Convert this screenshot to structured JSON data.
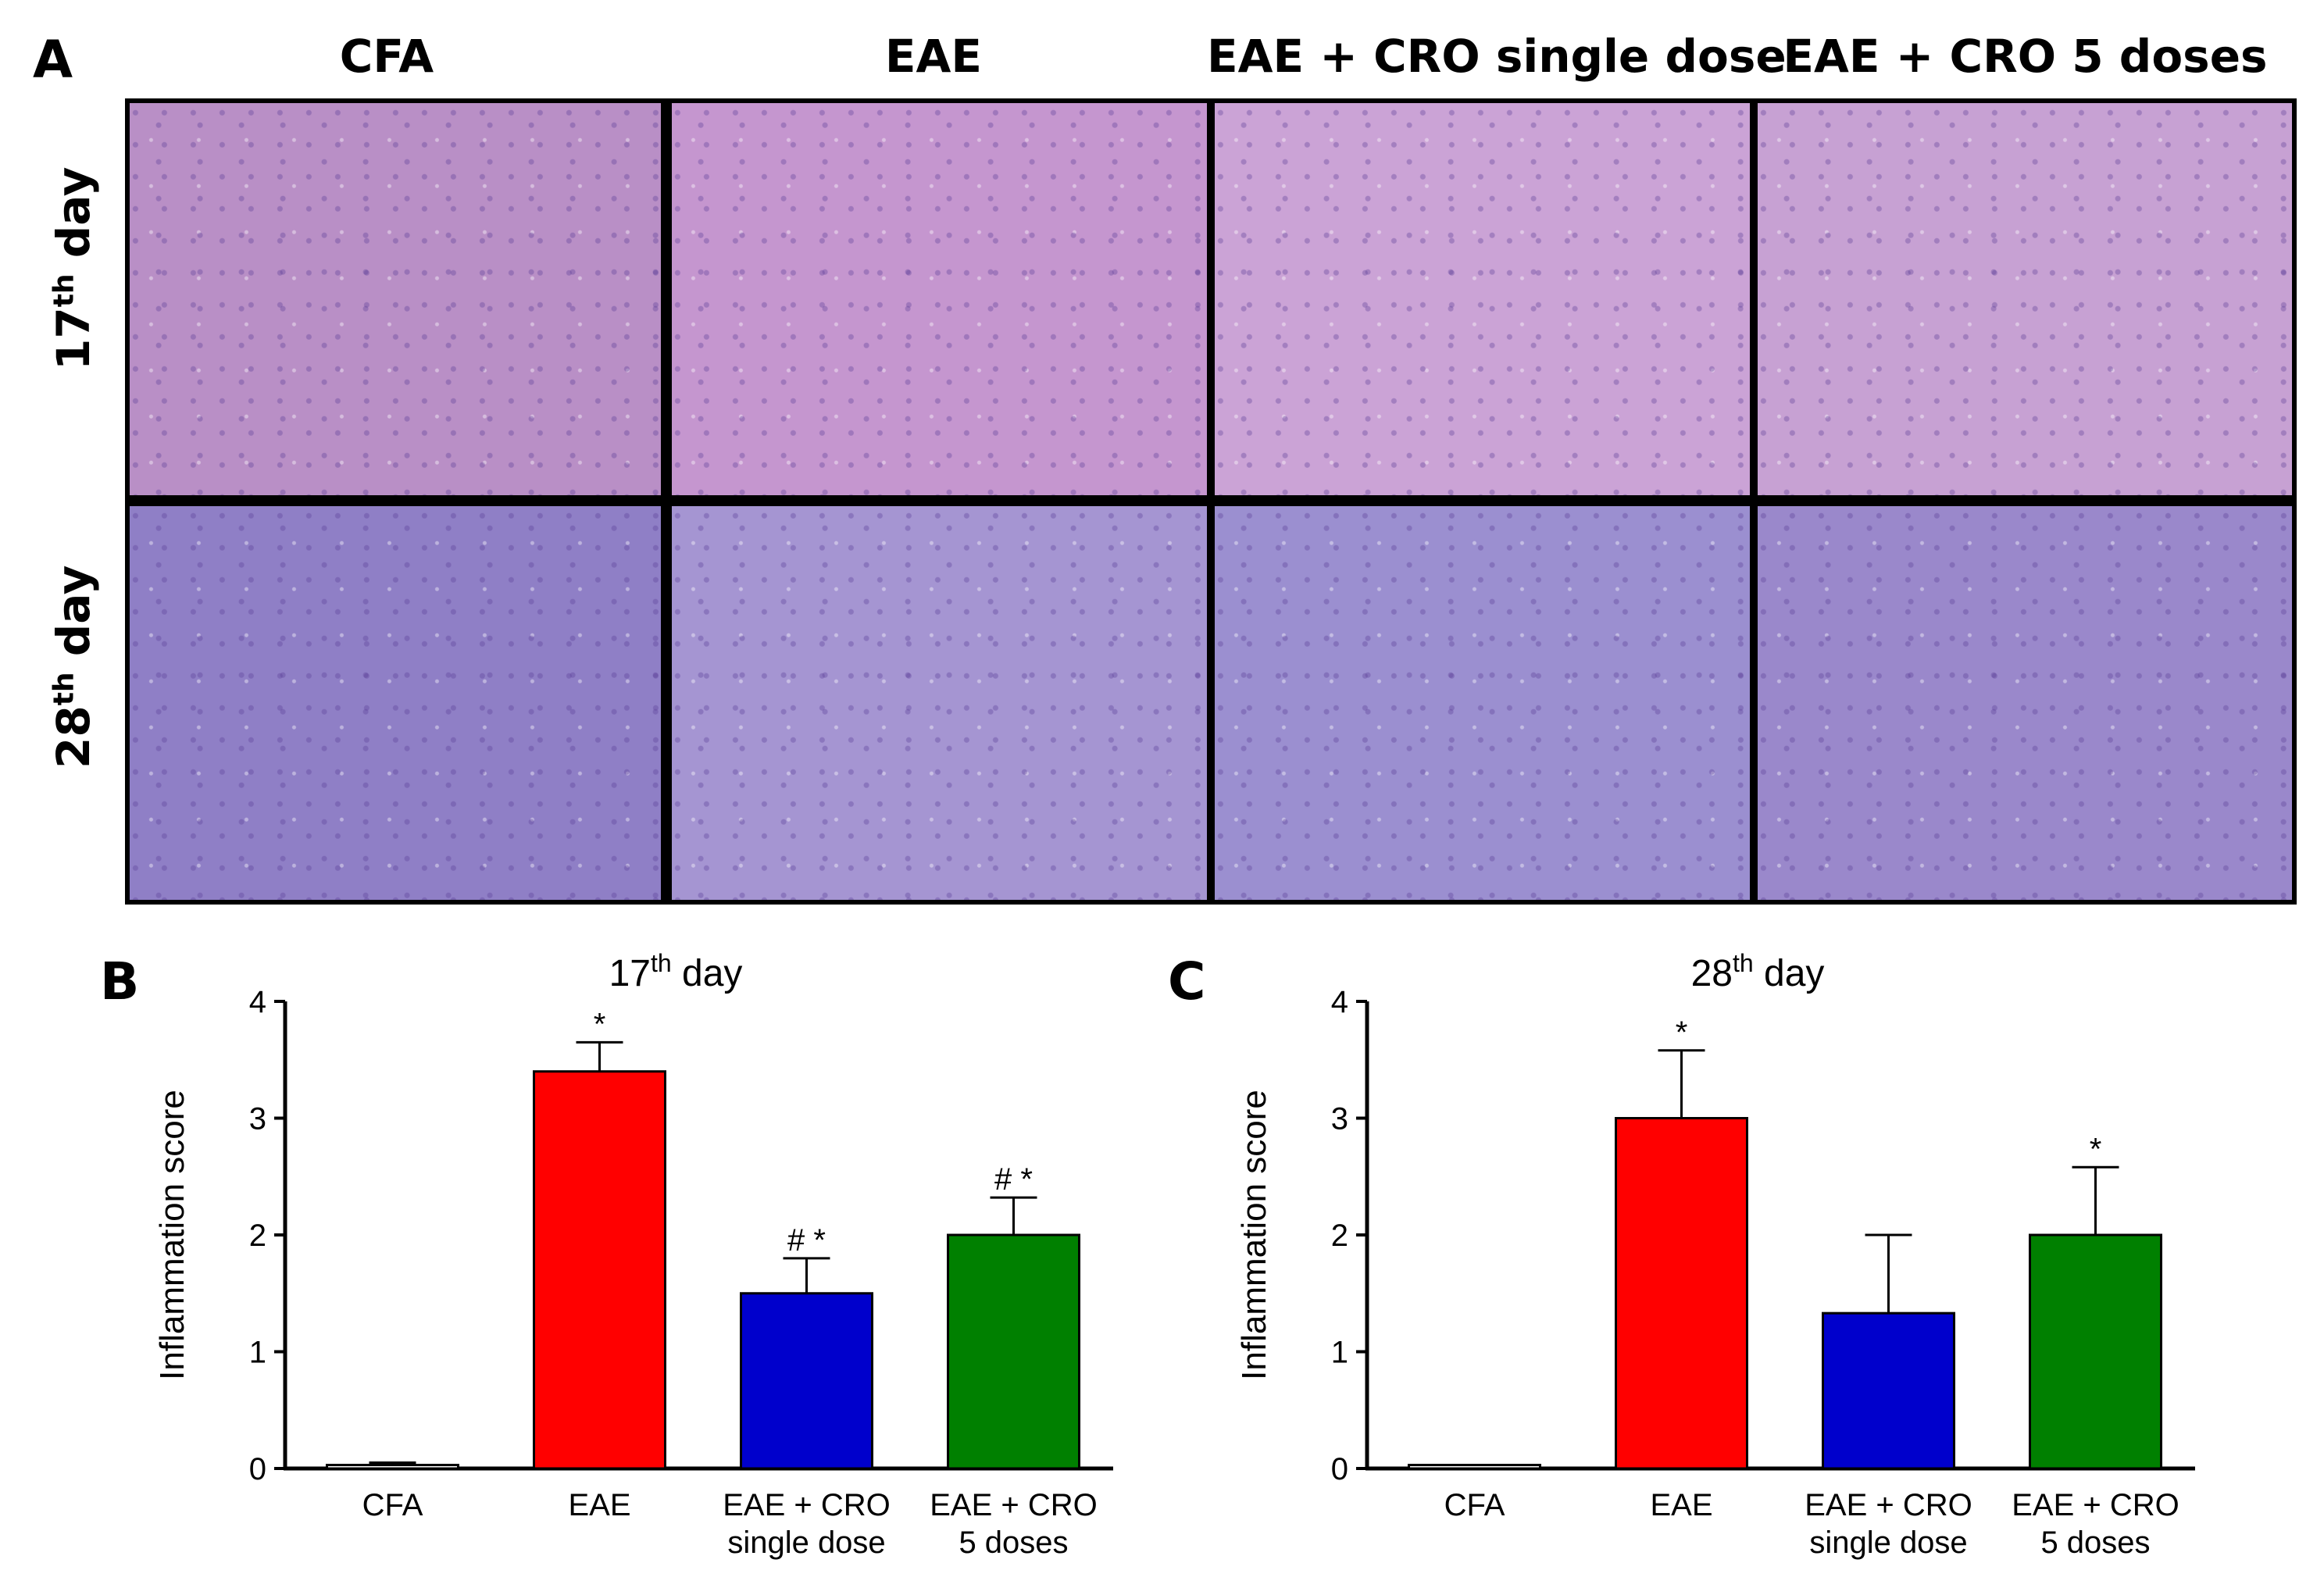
{
  "panel_a": {
    "letter": "A",
    "columns": [
      "CFA",
      "EAE",
      "EAE + CRO single dose",
      "EAE + CRO 5 doses"
    ],
    "rows": [
      {
        "prefix": "17",
        "sup": "th",
        "suffix": " day"
      },
      {
        "prefix": "28",
        "sup": "th",
        "suffix": " day"
      }
    ],
    "tile_colors": [
      [
        "#b98fc6",
        "#c596cf",
        "#cba3d6",
        "#c7a1d3"
      ],
      [
        "#8f7fc6",
        "#a595d2",
        "#9b8fd0",
        "#9a88cb"
      ]
    ]
  },
  "chart_data": [
    {
      "panel": "B",
      "type": "bar",
      "title_main": "17",
      "title_sup": "th",
      "title_rest": " day",
      "ylabel": "Inflammation score",
      "ylim": [
        0,
        4
      ],
      "yticks": [
        "0",
        "1",
        "2",
        "3",
        "4"
      ],
      "categories": [
        [
          "CFA"
        ],
        [
          "EAE"
        ],
        [
          "EAE + CRO",
          "single dose"
        ],
        [
          "EAE + CRO",
          "5 doses"
        ]
      ],
      "values": [
        0.03,
        3.4,
        1.5,
        2.0
      ],
      "errors": [
        0.02,
        0.25,
        0.3,
        0.32
      ],
      "colors": [
        "#ffffff",
        "#ff0000",
        "#0000cc",
        "#008000"
      ],
      "annotations": [
        "",
        "*",
        "# *",
        "# *"
      ]
    },
    {
      "panel": "C",
      "type": "bar",
      "title_main": "28",
      "title_sup": "th",
      "title_rest": " day",
      "ylabel": "Inflammation score",
      "ylim": [
        0,
        4
      ],
      "yticks": [
        "0",
        "1",
        "2",
        "3",
        "4"
      ],
      "categories": [
        [
          "CFA"
        ],
        [
          "EAE"
        ],
        [
          "EAE + CRO",
          "single dose"
        ],
        [
          "EAE + CRO",
          "5 doses"
        ]
      ],
      "values": [
        0.03,
        3.0,
        1.33,
        2.0
      ],
      "errors": [
        0.0,
        0.58,
        0.67,
        0.58
      ],
      "colors": [
        "#ffffff",
        "#ff0000",
        "#0000cc",
        "#008000"
      ],
      "annotations": [
        "",
        "*",
        "",
        "*"
      ]
    }
  ]
}
